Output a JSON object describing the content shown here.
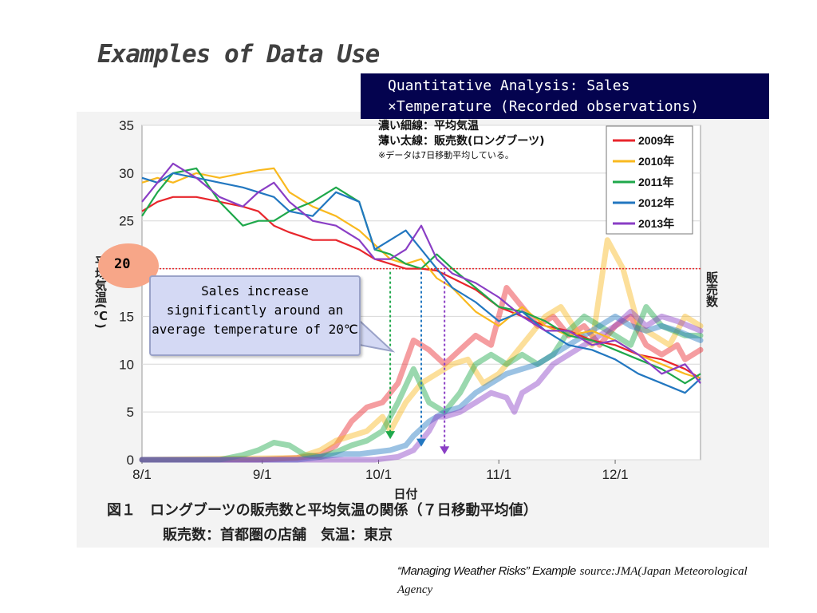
{
  "slide_title": "Examples of Data Use",
  "banner": {
    "line1": "Quantitative Analysis: Sales",
    "line2": "×Temperature (Recorded observations)"
  },
  "callout": {
    "highlight_value": "20",
    "text": "Sales increase significantly around an average temperature of 20℃"
  },
  "caption": {
    "example": "“Managing Weather Risks” Example",
    "source": "source:JMA(Japan Meteorological Agency"
  },
  "chart_data": {
    "type": "line",
    "figure_caption_line1": "図１　ロングブーツの販売数と平均気温の関係（７日移動平均値）",
    "figure_caption_line2": "販売数：首都圏の店舗　気温：東京",
    "note_line1": "濃い細線：平均気温",
    "note_line2": "薄い太線：販売数(ロングブーツ)",
    "note_line3": "※データは7日移動平均している。",
    "ylabel_left": "平均気温(℃)",
    "ylabel_right": "販売数",
    "xlabel": "日付",
    "ylim": [
      0,
      35
    ],
    "yticks": [
      "0",
      "5",
      "10",
      "15",
      "20",
      "25",
      "30",
      "35"
    ],
    "xticks": [
      {
        "label": "8/1",
        "day": 0
      },
      {
        "label": "9/1",
        "day": 31
      },
      {
        "label": "10/1",
        "day": 61
      },
      {
        "label": "11/1",
        "day": 92
      },
      {
        "label": "12/1",
        "day": 122
      }
    ],
    "x_range_days": [
      0,
      144
    ],
    "reference_line": 20,
    "arrow_days": [
      64,
      72,
      78
    ],
    "colors": {
      "2009年": "#e8262c",
      "2010年": "#f9b91f",
      "2011年": "#1fa84b",
      "2012年": "#2277c0",
      "2013年": "#8a3ec5"
    },
    "legend": [
      "2009年",
      "2010年",
      "2011年",
      "2012年",
      "2013年"
    ],
    "temperature_series": [
      {
        "name": "2009年",
        "x": [
          0,
          4,
          8,
          14,
          20,
          26,
          30,
          34,
          38,
          44,
          50,
          56,
          60,
          64,
          68,
          72,
          76,
          80,
          86,
          92,
          98,
          104,
          110,
          116,
          122,
          128,
          134,
          140,
          144
        ],
        "y": [
          26,
          27,
          27.5,
          27.5,
          27,
          26.5,
          26,
          24.5,
          23.8,
          23,
          23,
          22,
          21,
          20.5,
          20,
          20,
          19.8,
          19,
          17.8,
          16,
          15,
          14,
          13.5,
          12.5,
          12,
          11,
          10.5,
          9.5,
          8.5
        ]
      },
      {
        "name": "2010年",
        "x": [
          0,
          4,
          8,
          14,
          20,
          26,
          30,
          34,
          38,
          44,
          50,
          56,
          60,
          64,
          68,
          72,
          76,
          80,
          86,
          92,
          98,
          104,
          110,
          116,
          122,
          128,
          134,
          140,
          144
        ],
        "y": [
          29,
          29.5,
          29,
          30,
          29.5,
          30,
          30.3,
          30.5,
          28,
          26.5,
          25.5,
          24,
          22.5,
          21,
          20.5,
          21,
          19,
          18,
          15.5,
          14,
          16,
          14,
          13,
          13.5,
          12.5,
          11,
          10,
          9,
          8.5
        ]
      },
      {
        "name": "2011年",
        "x": [
          0,
          4,
          8,
          14,
          20,
          26,
          30,
          34,
          38,
          44,
          50,
          56,
          60,
          64,
          68,
          72,
          76,
          80,
          86,
          92,
          98,
          104,
          110,
          116,
          122,
          128,
          134,
          140,
          144
        ],
        "y": [
          25.5,
          28,
          30,
          30.5,
          27,
          24.5,
          25,
          25,
          26,
          27,
          28.5,
          27,
          22,
          21.5,
          20.5,
          20,
          21.5,
          20,
          18,
          16,
          15.5,
          14.5,
          13,
          12.5,
          11.5,
          10.5,
          9.5,
          8,
          9
        ]
      },
      {
        "name": "2012年",
        "x": [
          0,
          4,
          8,
          14,
          20,
          26,
          30,
          34,
          38,
          44,
          50,
          56,
          60,
          64,
          68,
          72,
          76,
          80,
          86,
          92,
          98,
          104,
          110,
          116,
          122,
          128,
          134,
          140,
          144
        ],
        "y": [
          29.5,
          29,
          30,
          29.5,
          29,
          28.5,
          28,
          27.5,
          26,
          25.5,
          28,
          27,
          22,
          23,
          24,
          22,
          20,
          18,
          16.5,
          14.5,
          15.5,
          13.5,
          12,
          11.5,
          10.5,
          9,
          8,
          7,
          8.5
        ]
      },
      {
        "name": "2013年",
        "x": [
          0,
          4,
          8,
          14,
          20,
          26,
          30,
          34,
          38,
          44,
          50,
          56,
          60,
          64,
          68,
          72,
          76,
          80,
          86,
          92,
          98,
          104,
          110,
          116,
          122,
          128,
          134,
          140,
          144
        ],
        "y": [
          27,
          29,
          31,
          29.5,
          27.5,
          26.5,
          28,
          29,
          27,
          25,
          24.5,
          23,
          21,
          21,
          22,
          24.5,
          21,
          19.5,
          18.5,
          17,
          15,
          13.5,
          13.5,
          12,
          12.5,
          11,
          9,
          10,
          8
        ]
      }
    ],
    "sales_series": [
      {
        "name": "2009年",
        "x": [
          0,
          30,
          40,
          46,
          50,
          54,
          58,
          62,
          66,
          70,
          74,
          78,
          82,
          86,
          90,
          94,
          98,
          102,
          106,
          110,
          114,
          118,
          122,
          126,
          130,
          134,
          138,
          140,
          144
        ],
        "y": [
          0,
          0,
          0.2,
          0.5,
          1.5,
          4,
          5.5,
          6,
          8,
          12.5,
          11.5,
          10,
          11.5,
          13,
          12,
          18,
          16,
          14,
          15,
          13,
          14,
          12,
          14,
          15,
          12,
          11,
          12,
          10.5,
          11.5
        ]
      },
      {
        "name": "2010年",
        "x": [
          0,
          40,
          46,
          50,
          54,
          58,
          62,
          64,
          68,
          72,
          76,
          80,
          84,
          88,
          92,
          96,
          100,
          104,
          108,
          112,
          116,
          120,
          124,
          128,
          132,
          136,
          140,
          144
        ],
        "y": [
          0,
          0.2,
          1,
          2,
          2.5,
          3,
          4.5,
          3,
          6,
          8,
          9,
          10,
          10.5,
          8,
          9,
          11,
          13,
          15,
          16,
          13.5,
          12,
          23,
          20,
          14,
          13,
          12,
          15,
          14
        ]
      },
      {
        "name": "2011年",
        "x": [
          0,
          20,
          26,
          30,
          34,
          38,
          42,
          46,
          50,
          54,
          58,
          62,
          66,
          70,
          74,
          78,
          82,
          86,
          90,
          94,
          98,
          102,
          106,
          110,
          114,
          118,
          122,
          126,
          130,
          134,
          140,
          144
        ],
        "y": [
          0,
          0,
          0.5,
          1,
          1.8,
          1.5,
          0.5,
          0.3,
          0.8,
          1.5,
          2,
          3,
          6,
          9.5,
          6,
          5,
          7,
          10,
          11,
          10,
          11,
          10,
          11,
          13.5,
          15,
          14,
          13,
          12,
          16,
          14,
          13,
          13
        ]
      },
      {
        "name": "2012年",
        "x": [
          0,
          40,
          46,
          52,
          56,
          60,
          64,
          68,
          70,
          74,
          78,
          82,
          86,
          90,
          94,
          98,
          102,
          106,
          110,
          114,
          118,
          122,
          126,
          130,
          134,
          138,
          144
        ],
        "y": [
          0,
          0,
          0.3,
          0.6,
          0.6,
          0.8,
          1,
          1.5,
          2.5,
          4,
          5,
          5.5,
          7,
          8,
          9,
          9.5,
          10,
          11,
          12,
          13,
          14,
          15,
          14,
          13.5,
          14,
          13.5,
          12.5
        ]
      },
      {
        "name": "2013年",
        "x": [
          0,
          60,
          66,
          70,
          72,
          74,
          76,
          78,
          82,
          86,
          90,
          94,
          96,
          98,
          102,
          106,
          110,
          114,
          118,
          122,
          126,
          130,
          134,
          138,
          144
        ],
        "y": [
          0,
          0,
          0.3,
          1,
          2,
          3,
          4.5,
          4.5,
          5,
          6,
          7,
          6.5,
          5,
          7,
          8,
          10,
          11,
          12,
          13,
          14,
          15.5,
          14,
          15,
          14.5,
          13.5
        ]
      }
    ]
  }
}
